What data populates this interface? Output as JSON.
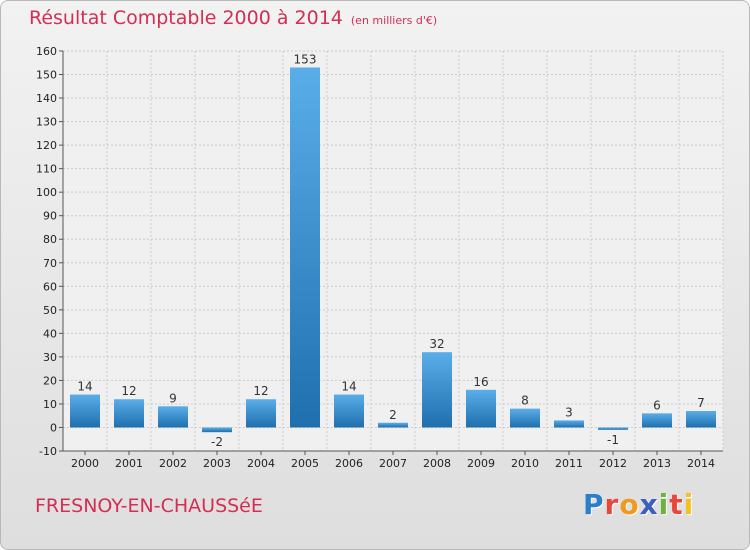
{
  "header": {
    "title": "Résultat Comptable 2000 à 2014",
    "unit": "(en milliers d'€)"
  },
  "footer": {
    "commune": "FRESNOY-EN-CHAUSSéE",
    "logo_letters": [
      {
        "ch": "P",
        "color": "#2a7fc9"
      },
      {
        "ch": "r",
        "color": "#e8473c"
      },
      {
        "ch": "o",
        "color": "#f29a1f"
      },
      {
        "ch": "x",
        "color": "#3b5fbf"
      },
      {
        "ch": "i",
        "color": "#6bb33a"
      },
      {
        "ch": "t",
        "color": "#e8473c"
      },
      {
        "ch": "i",
        "color": "#f2c21f"
      }
    ]
  },
  "colors": {
    "title": "#d42e52",
    "bar_light": "#5aaee8",
    "bar_dark": "#1f6faf",
    "grid": "#cccccc"
  },
  "chart_data": {
    "type": "bar",
    "title": "Résultat Comptable 2000 à 2014",
    "subtitle": "(en milliers d'€)",
    "categories": [
      "2000",
      "2001",
      "2002",
      "2003",
      "2004",
      "2005",
      "2006",
      "2007",
      "2008",
      "2009",
      "2010",
      "2011",
      "2012",
      "2013",
      "2014"
    ],
    "values": [
      14,
      12,
      9,
      -2,
      12,
      153,
      14,
      2,
      32,
      16,
      8,
      3,
      -1,
      6,
      7
    ],
    "data_labels": [
      "14",
      "12",
      "9",
      "-2",
      "12",
      "153",
      "14",
      "2",
      "32",
      "16",
      "8",
      "3",
      "-1",
      "6",
      "7"
    ],
    "ylim": [
      -10,
      160
    ],
    "yticks": [
      -10,
      0,
      10,
      20,
      30,
      40,
      50,
      60,
      70,
      80,
      90,
      100,
      110,
      120,
      130,
      140,
      150,
      160
    ],
    "grid": true,
    "legend": "none"
  }
}
